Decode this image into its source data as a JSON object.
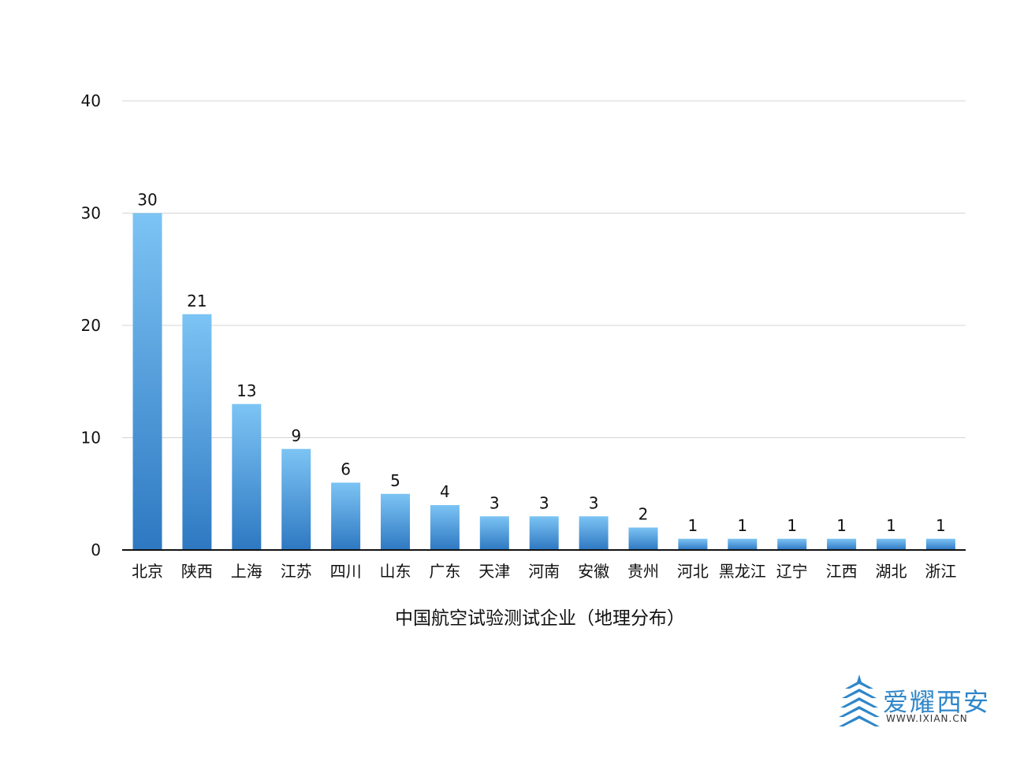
{
  "chart_data": {
    "type": "bar",
    "categories": [
      "北京",
      "陕西",
      "上海",
      "江苏",
      "四川",
      "山东",
      "广东",
      "天津",
      "河南",
      "安徽",
      "贵州",
      "河北",
      "黑龙江",
      "辽宁",
      "江西",
      "湖北",
      "浙江"
    ],
    "values": [
      30,
      21,
      13,
      9,
      6,
      5,
      4,
      3,
      3,
      3,
      2,
      1,
      1,
      1,
      1,
      1,
      1
    ],
    "title": "",
    "xlabel": "中国航空试验测试企业（地理分布）",
    "ylabel": "",
    "ylim": [
      0,
      40
    ],
    "yticks": [
      0,
      10,
      20,
      30,
      40
    ],
    "grid": true,
    "legend": "none",
    "colors": {
      "bar_top": "#7cc4f4",
      "bar_bottom": "#2e78c2"
    }
  },
  "watermark": {
    "text": "爱耀西安",
    "url": "WWW.IXIAN.CN",
    "icon": "tower-logo-icon",
    "color": "#2f86c9"
  }
}
